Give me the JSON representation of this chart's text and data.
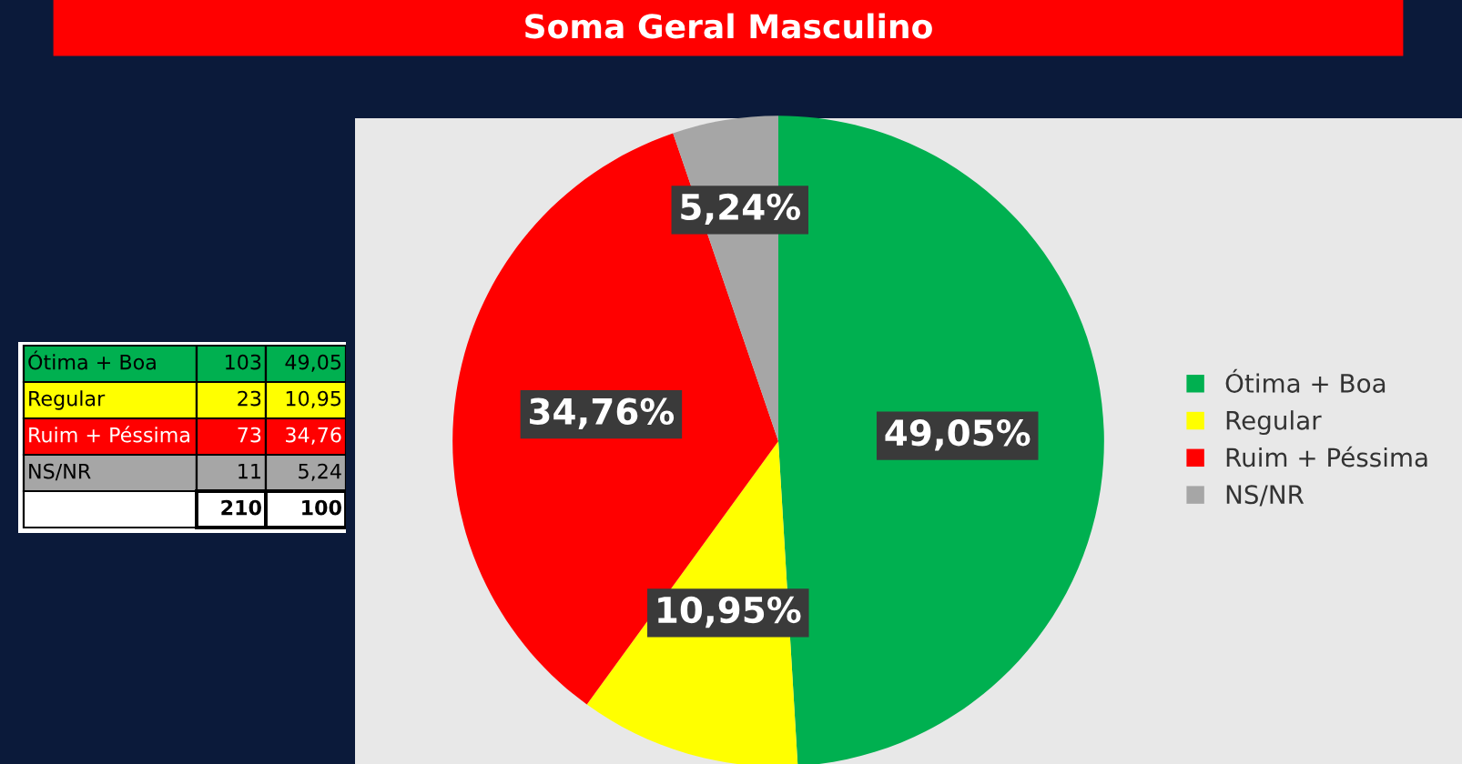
{
  "chart_data": [
    {
      "type": "pie",
      "title": "Soma Geral Masculino",
      "categories": [
        "Ótima + Boa",
        "Regular",
        "Ruim + Péssima",
        "NS/NR"
      ],
      "values": [
        49.05,
        10.95,
        34.76,
        5.24
      ],
      "value_labels": [
        "49,05%",
        "10,95%",
        "34,76%",
        "5,24%"
      ],
      "colors": [
        "#00b050",
        "#ffff00",
        "#ff0000",
        "#a6a6a6"
      ],
      "legend": "right"
    },
    {
      "type": "other",
      "data_labels": true,
      "categories": [
        "Ótima + Boa",
        "Regular",
        "Ruim + Péssima",
        "NS/NR"
      ],
      "series": [
        {
          "values": [
            103,
            23,
            73,
            11
          ],
          "colors": [
            "#00b050",
            "#ffff00",
            "#ff0000",
            "#a6a6a6"
          ]
        },
        {
          "values": [
            49.05,
            10.95,
            34.76,
            5.24
          ],
          "value_labels": [
            "49,05",
            "10,95",
            "34,76",
            "5,24"
          ],
          "colors": [
            "#00b050",
            "#ffff00",
            "#ff0000",
            "#a6a6a6"
          ]
        }
      ],
      "totals": [
        "210",
        "100"
      ]
    }
  ]
}
